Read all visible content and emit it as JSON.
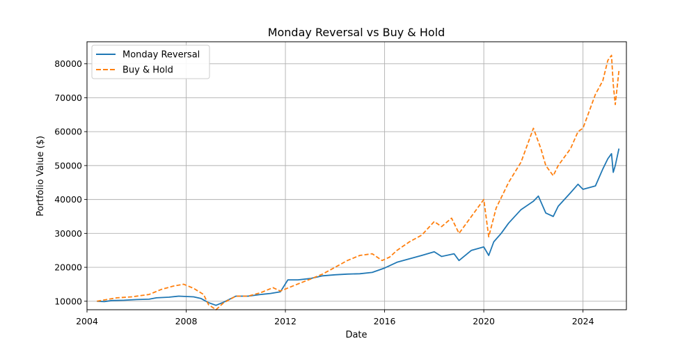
{
  "chart_data": {
    "type": "line",
    "title": "Monday Reversal vs Buy & Hold",
    "xlabel": "Date",
    "ylabel": "Portfolio Value ($)",
    "xlim": [
      2004.0,
      2025.75
    ],
    "ylim": [
      7500,
      86500
    ],
    "xticks": [
      2004,
      2008,
      2012,
      2016,
      2020,
      2024
    ],
    "xtick_labels": [
      "2004",
      "2008",
      "2012",
      "2016",
      "2020",
      "2024"
    ],
    "yticks": [
      10000,
      20000,
      30000,
      40000,
      50000,
      60000,
      70000,
      80000
    ],
    "ytick_labels": [
      "10000",
      "20000",
      "30000",
      "40000",
      "50000",
      "60000",
      "70000",
      "80000"
    ],
    "grid": true,
    "legend_position": "top-left",
    "series": [
      {
        "name": "Monday Reversal",
        "color": "#1f77b4",
        "style": "solid",
        "points": [
          [
            2004.4,
            10000
          ],
          [
            2004.7,
            9900
          ],
          [
            2005.0,
            10200
          ],
          [
            2005.5,
            10300
          ],
          [
            2006.0,
            10500
          ],
          [
            2006.5,
            10600
          ],
          [
            2006.8,
            11000
          ],
          [
            2007.3,
            11200
          ],
          [
            2007.7,
            11500
          ],
          [
            2008.0,
            11400
          ],
          [
            2008.3,
            11300
          ],
          [
            2008.6,
            10800
          ],
          [
            2008.9,
            9600
          ],
          [
            2009.2,
            8800
          ],
          [
            2009.5,
            9700
          ],
          [
            2010.0,
            11500
          ],
          [
            2010.5,
            11500
          ],
          [
            2011.0,
            12000
          ],
          [
            2011.4,
            12300
          ],
          [
            2011.8,
            12800
          ],
          [
            2012.1,
            16300
          ],
          [
            2012.5,
            16300
          ],
          [
            2013.0,
            16700
          ],
          [
            2013.5,
            17500
          ],
          [
            2014.0,
            17800
          ],
          [
            2014.5,
            18000
          ],
          [
            2015.0,
            18100
          ],
          [
            2015.5,
            18500
          ],
          [
            2016.0,
            19800
          ],
          [
            2016.5,
            21500
          ],
          [
            2017.0,
            22500
          ],
          [
            2017.5,
            23500
          ],
          [
            2018.0,
            24600
          ],
          [
            2018.3,
            23200
          ],
          [
            2018.8,
            24000
          ],
          [
            2019.0,
            22000
          ],
          [
            2019.5,
            25000
          ],
          [
            2020.0,
            26000
          ],
          [
            2020.2,
            23500
          ],
          [
            2020.4,
            27500
          ],
          [
            2020.7,
            30000
          ],
          [
            2021.0,
            33000
          ],
          [
            2021.5,
            37000
          ],
          [
            2022.0,
            39500
          ],
          [
            2022.2,
            41000
          ],
          [
            2022.5,
            36000
          ],
          [
            2022.8,
            35000
          ],
          [
            2023.0,
            38000
          ],
          [
            2023.5,
            42000
          ],
          [
            2023.8,
            44500
          ],
          [
            2024.0,
            43000
          ],
          [
            2024.5,
            44000
          ],
          [
            2024.8,
            49000
          ],
          [
            2025.0,
            52000
          ],
          [
            2025.15,
            53500
          ],
          [
            2025.22,
            48000
          ],
          [
            2025.3,
            50000
          ],
          [
            2025.45,
            55000
          ]
        ]
      },
      {
        "name": "Buy & Hold",
        "color": "#ff7f0e",
        "style": "dashed",
        "points": [
          [
            2004.4,
            10000
          ],
          [
            2004.8,
            10500
          ],
          [
            2005.2,
            11000
          ],
          [
            2005.8,
            11300
          ],
          [
            2006.5,
            12000
          ],
          [
            2007.0,
            13500
          ],
          [
            2007.5,
            14500
          ],
          [
            2007.9,
            15000
          ],
          [
            2008.3,
            13800
          ],
          [
            2008.7,
            12000
          ],
          [
            2008.9,
            9000
          ],
          [
            2009.2,
            7500
          ],
          [
            2009.5,
            9500
          ],
          [
            2010.0,
            11500
          ],
          [
            2010.5,
            11500
          ],
          [
            2011.0,
            12500
          ],
          [
            2011.5,
            14000
          ],
          [
            2011.8,
            13000
          ],
          [
            2012.3,
            14500
          ],
          [
            2013.0,
            16500
          ],
          [
            2013.5,
            18000
          ],
          [
            2014.0,
            20000
          ],
          [
            2014.5,
            22000
          ],
          [
            2015.0,
            23500
          ],
          [
            2015.5,
            24000
          ],
          [
            2015.9,
            22000
          ],
          [
            2016.2,
            23000
          ],
          [
            2016.5,
            25000
          ],
          [
            2017.0,
            27500
          ],
          [
            2017.5,
            29500
          ],
          [
            2018.0,
            33500
          ],
          [
            2018.3,
            32000
          ],
          [
            2018.7,
            34500
          ],
          [
            2019.0,
            30000
          ],
          [
            2019.5,
            35000
          ],
          [
            2020.0,
            40000
          ],
          [
            2020.2,
            29000
          ],
          [
            2020.5,
            37500
          ],
          [
            2020.8,
            42000
          ],
          [
            2021.0,
            45000
          ],
          [
            2021.5,
            51000
          ],
          [
            2022.0,
            61000
          ],
          [
            2022.3,
            55000
          ],
          [
            2022.5,
            50000
          ],
          [
            2022.8,
            47000
          ],
          [
            2023.0,
            50000
          ],
          [
            2023.5,
            55000
          ],
          [
            2023.8,
            60000
          ],
          [
            2024.0,
            61000
          ],
          [
            2024.5,
            71000
          ],
          [
            2024.8,
            75000
          ],
          [
            2025.0,
            81000
          ],
          [
            2025.15,
            82500
          ],
          [
            2025.22,
            74000
          ],
          [
            2025.3,
            68000
          ],
          [
            2025.45,
            78000
          ]
        ]
      }
    ]
  }
}
